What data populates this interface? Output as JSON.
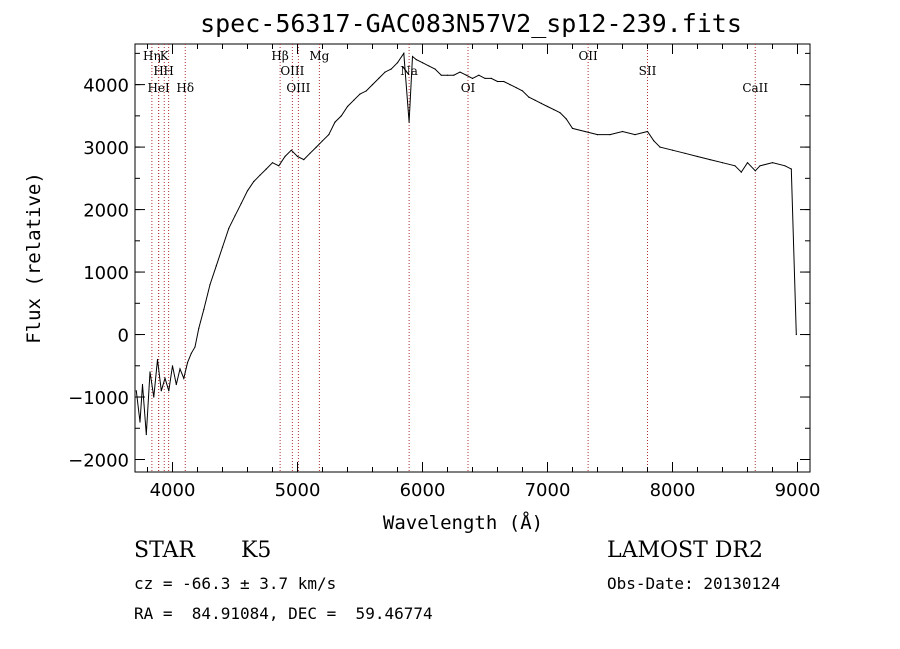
{
  "chart_data": {
    "type": "line",
    "title": "spec-56317-GAC083N57V2_sp12-239.fits",
    "xlabel": "Wavelength (Å)",
    "ylabel": "Flux (relative)",
    "xlim": [
      3700,
      9100
    ],
    "ylim": [
      -2200,
      4650
    ],
    "x_ticks": [
      4000,
      5000,
      6000,
      7000,
      8000,
      9000
    ],
    "y_ticks": [
      -2000,
      -1000,
      0,
      1000,
      2000,
      3000,
      4000
    ],
    "spectral_lines": [
      {
        "label": "Hη",
        "wavelength": 3835
      },
      {
        "label": "H",
        "wavelength": 3889
      },
      {
        "label": "HeI",
        "wavelength": 3889
      },
      {
        "label": "K",
        "wavelength": 3934
      },
      {
        "label": "H",
        "wavelength": 3969
      },
      {
        "label": "Hδ",
        "wavelength": 4102
      },
      {
        "label": "Hβ",
        "wavelength": 4861
      },
      {
        "label": "OIII",
        "wavelength": 4959
      },
      {
        "label": "OIII",
        "wavelength": 5007
      },
      {
        "label": "Mg",
        "wavelength": 5175
      },
      {
        "label": "Na",
        "wavelength": 5893
      },
      {
        "label": "OI",
        "wavelength": 6364
      },
      {
        "label": "OII",
        "wavelength": 7325
      },
      {
        "label": "SII",
        "wavelength": 7800
      },
      {
        "label": "CaII",
        "wavelength": 8662
      }
    ],
    "series": [
      {
        "x": [
          3710,
          3740,
          3760,
          3790,
          3820,
          3850,
          3880,
          3910,
          3940,
          3970,
          4000,
          4030,
          4060,
          4090,
          4120,
          4150,
          4180,
          4210,
          4250,
          4300,
          4350,
          4400,
          4450,
          4500,
          4550,
          4600,
          4650,
          4700,
          4750,
          4800,
          4850,
          4900,
          4950,
          5000,
          5050,
          5100,
          5150,
          5200,
          5250,
          5300,
          5350,
          5400,
          5450,
          5500,
          5550,
          5600,
          5650,
          5700,
          5750,
          5800,
          5850,
          5893,
          5920,
          5950,
          6000,
          6050,
          6100,
          6150,
          6200,
          6250,
          6300,
          6350,
          6400,
          6450,
          6500,
          6550,
          6600,
          6650,
          6700,
          6750,
          6800,
          6850,
          6900,
          6950,
          7000,
          7050,
          7100,
          7150,
          7200,
          7300,
          7400,
          7500,
          7600,
          7700,
          7800,
          7850,
          7900,
          8000,
          8100,
          8200,
          8300,
          8400,
          8500,
          8550,
          8600,
          8662,
          8700,
          8800,
          8900,
          8950,
          8990
        ],
        "y": [
          -900,
          -1400,
          -800,
          -1600,
          -600,
          -1000,
          -400,
          -900,
          -700,
          -900,
          -500,
          -800,
          -550,
          -700,
          -450,
          -300,
          -200,
          100,
          400,
          800,
          1100,
          1400,
          1700,
          1900,
          2100,
          2300,
          2450,
          2550,
          2650,
          2750,
          2700,
          2850,
          2950,
          2850,
          2800,
          2900,
          3000,
          3100,
          3200,
          3400,
          3500,
          3650,
          3750,
          3850,
          3900,
          4000,
          4100,
          4200,
          4250,
          4350,
          4500,
          3400,
          4450,
          4400,
          4350,
          4300,
          4250,
          4150,
          4150,
          4150,
          4200,
          4150,
          4100,
          4150,
          4100,
          4100,
          4050,
          4050,
          4000,
          3950,
          3900,
          3800,
          3750,
          3700,
          3650,
          3600,
          3550,
          3450,
          3300,
          3250,
          3200,
          3200,
          3250,
          3200,
          3250,
          3100,
          3000,
          2950,
          2900,
          2850,
          2800,
          2750,
          2700,
          2600,
          2750,
          2620,
          2700,
          2750,
          2700,
          2650,
          0
        ]
      }
    ],
    "grid": false,
    "legend": "none"
  },
  "info": {
    "object_class": "STAR",
    "subclass": "K5",
    "cz": "cz = -66.3 ± 3.7 km/s",
    "coords": "RA =  84.91084, DEC =  59.46774",
    "survey": "LAMOST DR2",
    "obs_date": "Obs-Date: 20130124"
  }
}
